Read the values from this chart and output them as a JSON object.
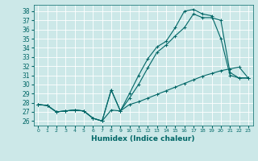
{
  "xlabel": "Humidex (Indice chaleur)",
  "bg_color": "#cce8e8",
  "grid_color": "#aacccc",
  "line_color": "#006666",
  "xlim": [
    -0.5,
    23.5
  ],
  "ylim": [
    25.5,
    38.7
  ],
  "xticks": [
    0,
    1,
    2,
    3,
    4,
    5,
    6,
    7,
    8,
    9,
    10,
    11,
    12,
    13,
    14,
    15,
    16,
    17,
    18,
    19,
    20,
    21,
    22,
    23
  ],
  "yticks": [
    26,
    27,
    28,
    29,
    30,
    31,
    32,
    33,
    34,
    35,
    36,
    37,
    38
  ],
  "line1_x": [
    0,
    1,
    2,
    3,
    4,
    5,
    6,
    7,
    8,
    9,
    10,
    11,
    12,
    13,
    14,
    15,
    16,
    17,
    18,
    19,
    20,
    21,
    22,
    23
  ],
  "line1_y": [
    27.8,
    27.7,
    27.0,
    27.1,
    27.2,
    27.1,
    26.3,
    26.0,
    27.2,
    27.1,
    27.8,
    28.1,
    28.5,
    28.9,
    29.3,
    29.7,
    30.1,
    30.5,
    30.9,
    31.2,
    31.5,
    31.7,
    31.9,
    30.7
  ],
  "line2_x": [
    0,
    1,
    2,
    3,
    4,
    5,
    6,
    7,
    8,
    9,
    10,
    11,
    12,
    13,
    14,
    15,
    16,
    17,
    18,
    19,
    20,
    21,
    22,
    23
  ],
  "line2_y": [
    27.8,
    27.7,
    27.0,
    27.1,
    27.2,
    27.1,
    26.3,
    26.0,
    29.4,
    27.1,
    28.5,
    30.0,
    31.8,
    33.5,
    34.3,
    35.3,
    36.2,
    37.7,
    37.3,
    37.3,
    37.0,
    31.3,
    30.7,
    30.7
  ],
  "line3_x": [
    0,
    1,
    2,
    3,
    4,
    5,
    6,
    7,
    8,
    9,
    10,
    11,
    12,
    13,
    14,
    15,
    16,
    17,
    18,
    19,
    20,
    21,
    22,
    23
  ],
  "line3_y": [
    27.8,
    27.7,
    27.0,
    27.1,
    27.2,
    27.1,
    26.3,
    26.0,
    29.4,
    27.1,
    29.0,
    31.0,
    32.8,
    34.1,
    34.7,
    36.2,
    38.0,
    38.2,
    37.7,
    37.5,
    35.0,
    31.0,
    30.7,
    30.7
  ]
}
